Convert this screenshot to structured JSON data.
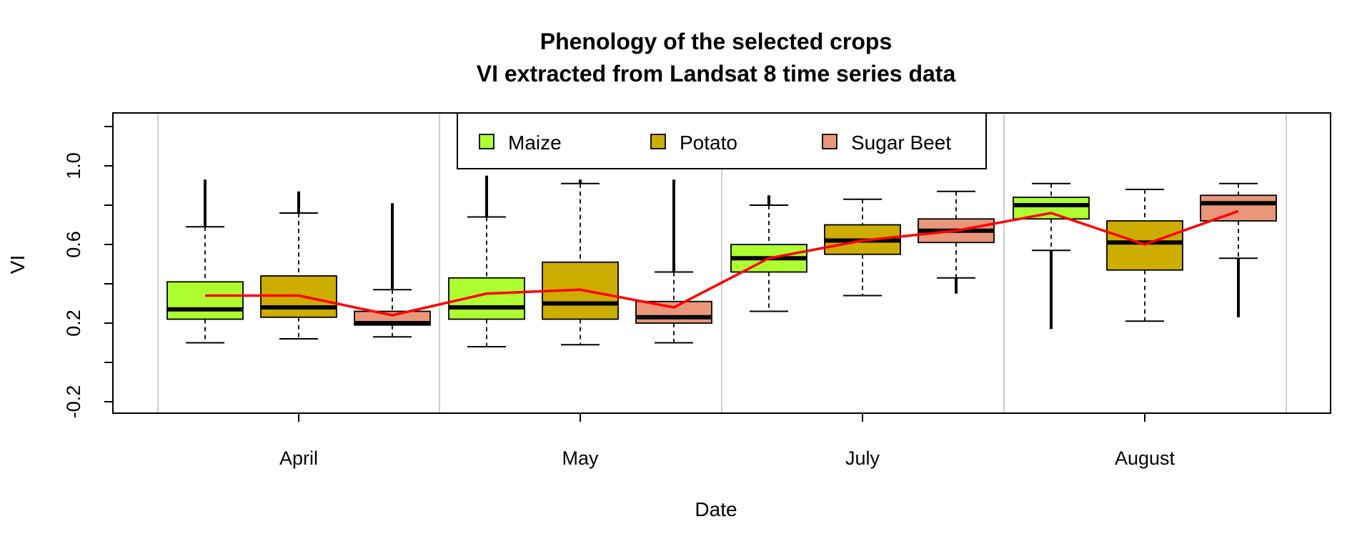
{
  "chart_data": {
    "type": "boxplot",
    "title": "Phenology of the selected crops",
    "subtitle": "VI extracted from Landsat 8 time series data",
    "xlabel": "Date",
    "ylabel": "VI",
    "categories": [
      "April",
      "May",
      "July",
      "August"
    ],
    "yticks": [
      "-0.2",
      "0.2",
      "0.6",
      "1.0"
    ],
    "ylim": [
      -0.25,
      1.25
    ],
    "grid": "vertical separators between months",
    "legend_position": "top-center",
    "series": [
      {
        "name": "Maize",
        "color": "#ADFF2F",
        "boxes": [
          {
            "whisker_low": 0.1,
            "q1": 0.22,
            "median": 0.27,
            "q3": 0.41,
            "whisker_high": 0.69,
            "outlier_high": 0.93,
            "outlier_low": null
          },
          {
            "whisker_low": 0.08,
            "q1": 0.22,
            "median": 0.28,
            "q3": 0.43,
            "whisker_high": 0.74,
            "outlier_high": 0.95,
            "outlier_low": null
          },
          {
            "whisker_low": 0.26,
            "q1": 0.46,
            "median": 0.53,
            "q3": 0.6,
            "whisker_high": 0.8,
            "outlier_high": 0.85,
            "outlier_low": null
          },
          {
            "whisker_low": 0.57,
            "q1": 0.73,
            "median": 0.8,
            "q3": 0.84,
            "whisker_high": 0.91,
            "outlier_high": null,
            "outlier_low": 0.17
          }
        ]
      },
      {
        "name": "Potato",
        "color": "#CDAD00",
        "boxes": [
          {
            "whisker_low": 0.12,
            "q1": 0.23,
            "median": 0.28,
            "q3": 0.44,
            "whisker_high": 0.76,
            "outlier_high": 0.87,
            "outlier_low": null
          },
          {
            "whisker_low": 0.09,
            "q1": 0.22,
            "median": 0.3,
            "q3": 0.51,
            "whisker_high": 0.91,
            "outlier_high": 0.93,
            "outlier_low": null
          },
          {
            "whisker_low": 0.34,
            "q1": 0.55,
            "median": 0.62,
            "q3": 0.7,
            "whisker_high": 0.83,
            "outlier_high": null,
            "outlier_low": null
          },
          {
            "whisker_low": 0.21,
            "q1": 0.47,
            "median": 0.61,
            "q3": 0.72,
            "whisker_high": 0.88,
            "outlier_high": null,
            "outlier_low": null
          }
        ]
      },
      {
        "name": "Sugar Beet",
        "color": "#E9967A",
        "boxes": [
          {
            "whisker_low": 0.13,
            "q1": 0.19,
            "median": 0.2,
            "q3": 0.26,
            "whisker_high": 0.37,
            "outlier_high": 0.81,
            "outlier_low": null
          },
          {
            "whisker_low": 0.1,
            "q1": 0.2,
            "median": 0.23,
            "q3": 0.31,
            "whisker_high": 0.46,
            "outlier_high": 0.93,
            "outlier_low": null
          },
          {
            "whisker_low": 0.43,
            "q1": 0.61,
            "median": 0.67,
            "q3": 0.73,
            "whisker_high": 0.87,
            "outlier_high": null,
            "outlier_low": 0.35
          },
          {
            "whisker_low": 0.53,
            "q1": 0.72,
            "median": 0.81,
            "q3": 0.85,
            "whisker_high": 0.91,
            "outlier_high": null,
            "outlier_low": 0.23
          }
        ]
      }
    ],
    "trend_line": {
      "color": "#FF0000",
      "values": [
        0.34,
        0.34,
        0.24,
        0.35,
        0.37,
        0.28,
        0.53,
        0.62,
        0.67,
        0.76,
        0.6,
        0.77
      ]
    }
  }
}
